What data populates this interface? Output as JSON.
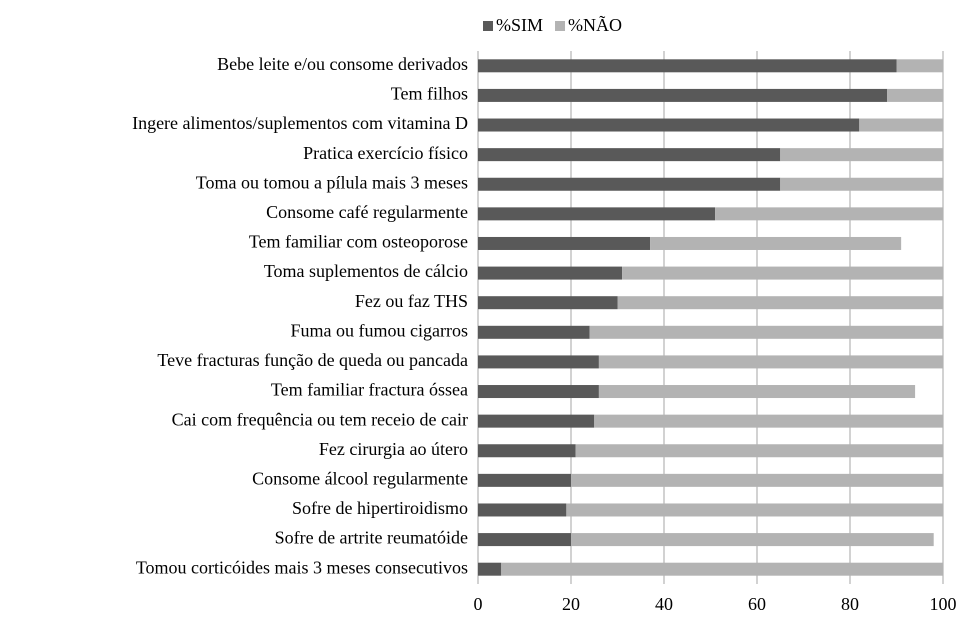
{
  "chart_data": {
    "type": "stacked_barh",
    "categories": [
      "Bebe leite e/ou consome derivados",
      "Tem filhos",
      "Ingere alimentos/suplementos com vitamina D",
      "Pratica exercício físico",
      "Toma ou tomou a pílula mais 3 meses",
      "Consome café regularmente",
      "Tem familiar com osteoporose",
      "Toma suplementos de cálcio",
      "Fez ou faz THS",
      "Fuma ou fumou cigarros",
      "Teve fracturas função de queda ou pancada",
      "Tem familiar fractura óssea",
      "Cai com frequência ou tem receio de cair",
      "Fez cirurgia ao útero",
      "Consome álcool regularmente",
      "Sofre de hipertiroidismo",
      "Sofre de artrite reumatóide",
      "Tomou corticóides mais 3 meses consecutivos"
    ],
    "series": [
      {
        "name": "%SIM",
        "color": "#595959",
        "values": [
          90,
          88,
          82,
          65,
          65,
          51,
          37,
          31,
          30,
          24,
          26,
          26,
          25,
          21,
          20,
          19,
          20,
          5
        ]
      },
      {
        "name": "%NÃO",
        "color": "#b3b3b3",
        "values": [
          10,
          12,
          18,
          35,
          35,
          49,
          54,
          69,
          70,
          76,
          74,
          68,
          75,
          79,
          80,
          81,
          78,
          95
        ]
      }
    ],
    "xlim": [
      0,
      100
    ],
    "xticks": [
      0,
      20,
      40,
      60,
      80,
      100
    ],
    "grid": true,
    "legend": "top"
  }
}
